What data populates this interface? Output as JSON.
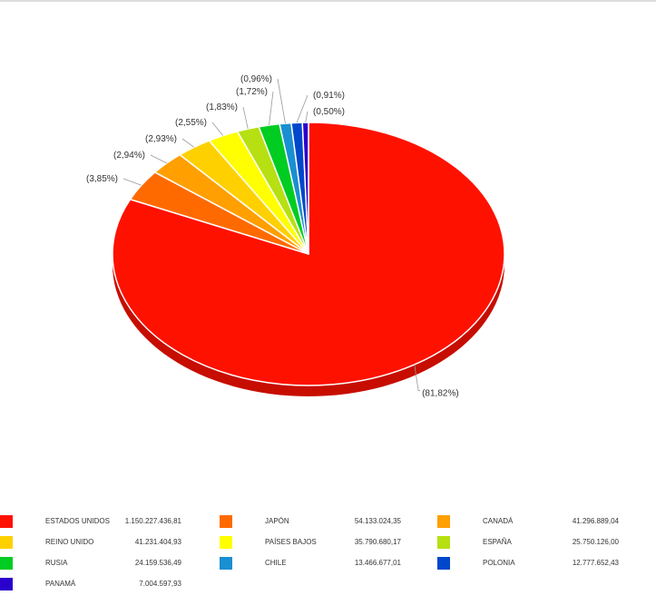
{
  "chart_data": {
    "type": "pie",
    "title": "",
    "categories": [
      "ESTADOS UNIDOS",
      "JAPÓN",
      "CANADÁ",
      "REINO UNIDO",
      "PAÍSES BAJOS",
      "ESPAÑA",
      "RUSIA",
      "CHILE",
      "POLONIA",
      "PANAMÁ"
    ],
    "values": [
      1150227436.81,
      54133024.35,
      41296889.04,
      41231404.93,
      35790680.17,
      25750126.0,
      24159536.49,
      13466677.01,
      12777652.43,
      7004597.93
    ],
    "value_labels": [
      "1.150.227.436,81",
      "54.133.024,35",
      "41.296.889,04",
      "41.231.404,93",
      "35.790.680,17",
      "25.750.126,00",
      "24.159.536,49",
      "13.466.677,01",
      "12.777.652,43",
      "7.004.597,93"
    ],
    "percent_labels": [
      "(81,82%)",
      "(3,85%)",
      "(2,94%)",
      "(2,93%)",
      "(2,55%)",
      "(1,83%)",
      "(1,72%)",
      "(0,96%)",
      "(0,91%)",
      "(0,50%)"
    ],
    "colors": [
      "#ff1100",
      "#ff6a00",
      "#ff9f00",
      "#ffd000",
      "#ffff00",
      "#b6e012",
      "#00cc22",
      "#1a8fd1",
      "#0047cc",
      "#2a00cc"
    ],
    "legend_position": "bottom",
    "style": "3d"
  }
}
